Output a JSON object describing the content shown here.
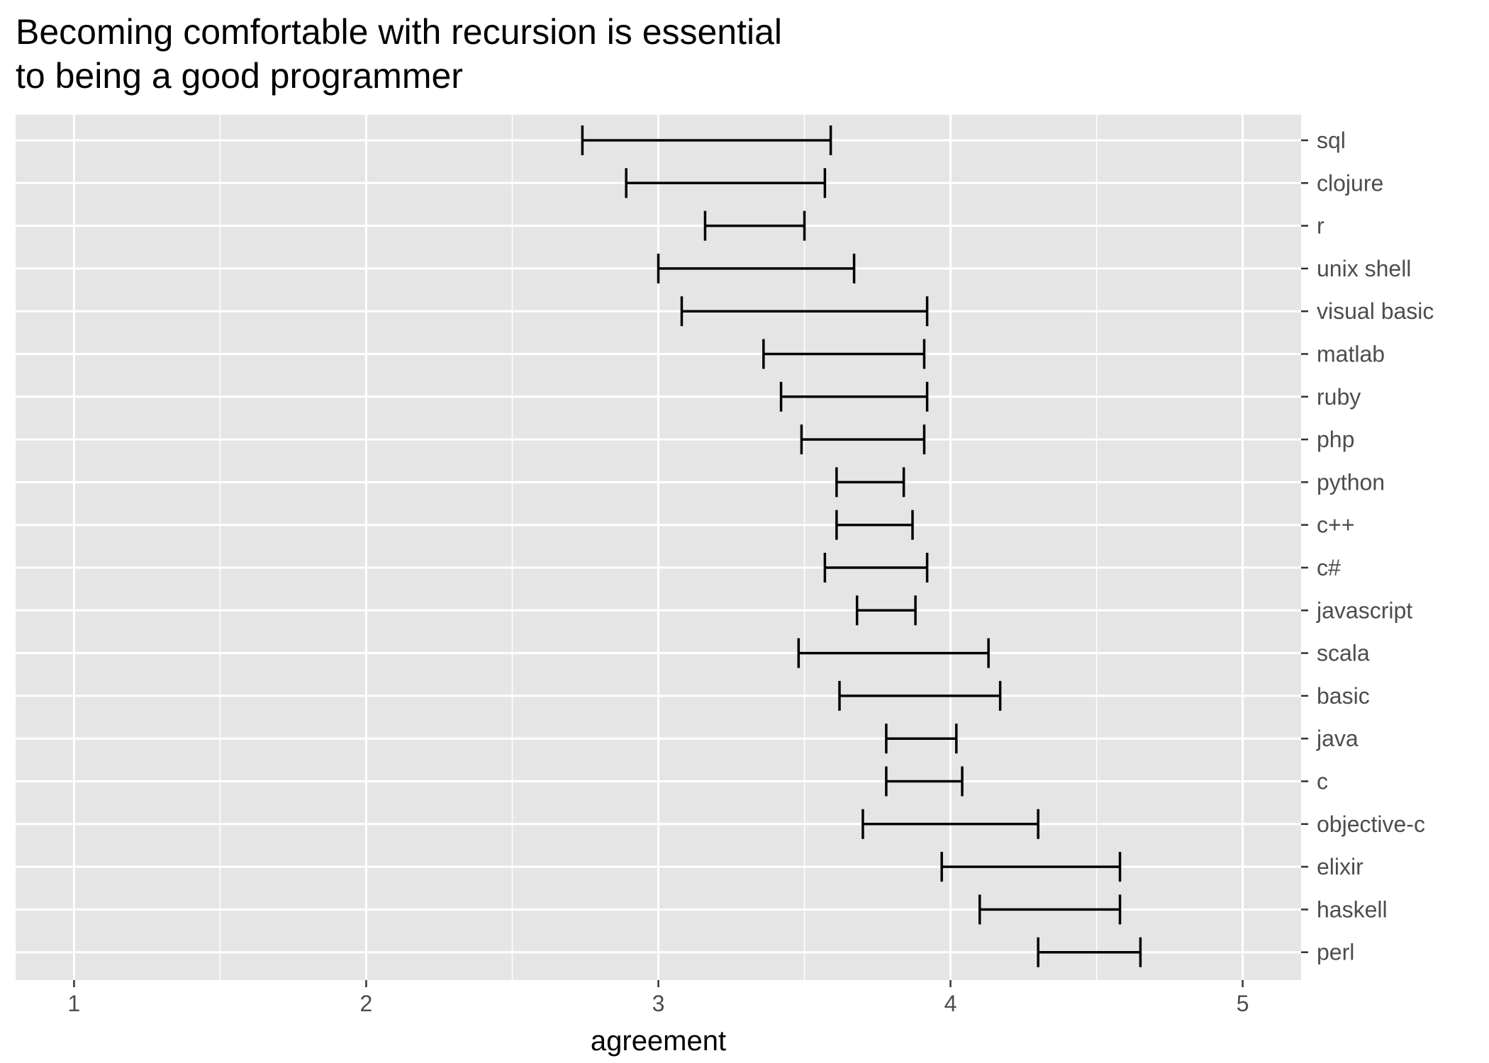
{
  "chart_data": {
    "type": "errorbar",
    "title_lines": [
      "Becoming comfortable with recursion is essential",
      "to being a good programmer"
    ],
    "xlabel": "agreement",
    "ylabel": "",
    "xlim": [
      0.8,
      5.2
    ],
    "xticks": [
      1,
      2,
      3,
      4,
      5
    ],
    "x_minor_grid": [
      1.5,
      2.5,
      3.5,
      4.5
    ],
    "grid": true,
    "y_axis_position": "right",
    "colors": {
      "panel_background": "#e5e5e5",
      "grid_line": "#ffffff",
      "error_bar": "#000000",
      "tick_label": "#4d4d4d"
    },
    "categories": [
      "sql",
      "clojure",
      "r",
      "unix shell",
      "visual basic",
      "matlab",
      "ruby",
      "php",
      "python",
      "c++",
      "c#",
      "javascript",
      "scala",
      "basic",
      "java",
      "c",
      "objective-c",
      "elixir",
      "haskell",
      "perl"
    ],
    "intervals": [
      {
        "category": "sql",
        "low": 2.74,
        "high": 3.59
      },
      {
        "category": "clojure",
        "low": 2.89,
        "high": 3.57
      },
      {
        "category": "r",
        "low": 3.16,
        "high": 3.5
      },
      {
        "category": "unix shell",
        "low": 3.0,
        "high": 3.67
      },
      {
        "category": "visual basic",
        "low": 3.08,
        "high": 3.92
      },
      {
        "category": "matlab",
        "low": 3.36,
        "high": 3.91
      },
      {
        "category": "ruby",
        "low": 3.42,
        "high": 3.92
      },
      {
        "category": "php",
        "low": 3.49,
        "high": 3.91
      },
      {
        "category": "python",
        "low": 3.61,
        "high": 3.84
      },
      {
        "category": "c++",
        "low": 3.61,
        "high": 3.87
      },
      {
        "category": "c#",
        "low": 3.57,
        "high": 3.92
      },
      {
        "category": "javascript",
        "low": 3.68,
        "high": 3.88
      },
      {
        "category": "scala",
        "low": 3.48,
        "high": 4.13
      },
      {
        "category": "basic",
        "low": 3.62,
        "high": 4.17
      },
      {
        "category": "java",
        "low": 3.78,
        "high": 4.02
      },
      {
        "category": "c",
        "low": 3.78,
        "high": 4.04
      },
      {
        "category": "objective-c",
        "low": 3.7,
        "high": 4.3
      },
      {
        "category": "elixir",
        "low": 3.97,
        "high": 4.58
      },
      {
        "category": "haskell",
        "low": 4.1,
        "high": 4.58
      },
      {
        "category": "perl",
        "low": 4.3,
        "high": 4.65
      }
    ]
  }
}
